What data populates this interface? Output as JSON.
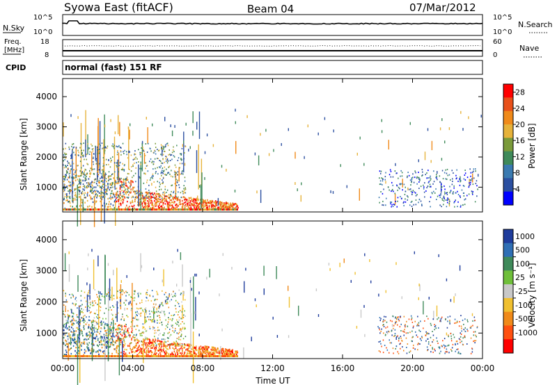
{
  "header": {
    "station": "Syowa East (fitACF)",
    "beam": "Beam 04",
    "date": "07/Mar/2012"
  },
  "summary_panel": {
    "nsky_label": "N.Sky",
    "nsky_ticks": [
      "10^5",
      "10^0"
    ],
    "nsearch_label": "N.Search",
    "freq_label_1": "Freq.",
    "freq_label_2": "[MHz]",
    "freq_ticks": [
      "18",
      "8"
    ],
    "nave_label": "Nave",
    "nave_ticks": [
      "60",
      "0"
    ],
    "cpid_label": "CPID",
    "cpid_value": "normal (fast) 151 RF"
  },
  "colors": {
    "power_scale": [
      "#0000ff",
      "#2b4fa0",
      "#3a7ab0",
      "#3f8a5a",
      "#7a9a3a",
      "#e6b23a",
      "#f08a1a",
      "#e8501a",
      "#ff0000"
    ],
    "velocity_scale": [
      "#1e3c9c",
      "#2f6fb5",
      "#3f8a5a",
      "#6fbf3a",
      "#c8c8c8",
      "#f0c030",
      "#f08a1a",
      "#ff5010",
      "#ff0000"
    ]
  },
  "chart_data": [
    {
      "type": "heatmap",
      "name": "power",
      "xlabel": "",
      "ylabel": "Slant Range [km]",
      "x_range_hours": [
        0,
        24
      ],
      "ylim": [
        180,
        4600
      ],
      "yticks": [
        "1000",
        "2000",
        "3000",
        "4000"
      ],
      "colorbar": {
        "label": "Power [dB]",
        "ticks": [
          "4",
          "8",
          "12",
          "16",
          "20",
          "24",
          "28"
        ],
        "range": [
          0,
          30
        ]
      }
    },
    {
      "type": "heatmap",
      "name": "velocity",
      "xlabel": "Time UT",
      "ylabel": "Slant Range [km]",
      "x_range_hours": [
        0,
        24
      ],
      "xticks": [
        "00:00",
        "04:00",
        "08:00",
        "12:00",
        "16:00",
        "20:00",
        "00:00"
      ],
      "ylim": [
        180,
        4600
      ],
      "yticks": [
        "1000",
        "2000",
        "3000",
        "4000"
      ],
      "colorbar": {
        "label": "Velocity [m s⁻¹]",
        "ticks": [
          "1000",
          "500",
          "100",
          "25",
          "-25",
          "-100",
          "-500",
          "-1000"
        ]
      }
    }
  ]
}
